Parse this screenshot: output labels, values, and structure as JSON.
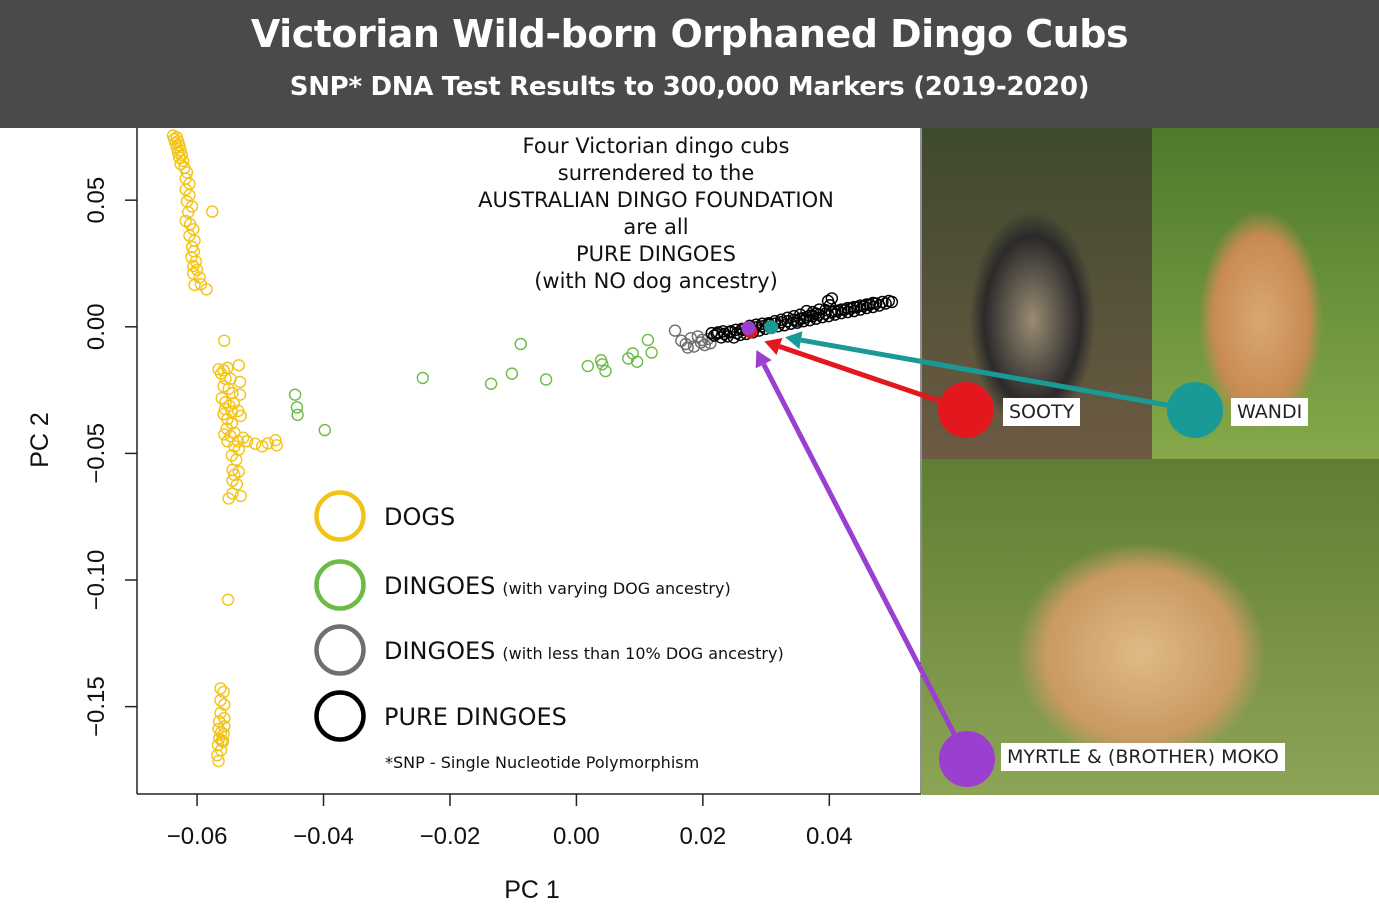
{
  "header": {
    "title": "Victorian Wild-born Orphaned Dingo Cubs",
    "subtitle": "SNP* DNA Test Results to 300,000 Markers (2019-2020)"
  },
  "annotation": [
    "Four Victorian dingo cubs",
    "surrendered to the",
    "AUSTRALIAN DINGO FOUNDATION",
    "are all",
    "PURE DINGOES",
    "(with NO dog ancestry)"
  ],
  "legend": {
    "items": [
      {
        "label": "DOGS",
        "note": "",
        "color": "#f2c418"
      },
      {
        "label": "DINGOES",
        "note": "(with varying DOG ancestry)",
        "color": "#6dbb46"
      },
      {
        "label": "DINGOES",
        "note": "(with less than 10% DOG ancestry)",
        "color": "#6f6f6f"
      },
      {
        "label": "PURE DINGOES",
        "note": "",
        "color": "#000000"
      }
    ],
    "footnote": "*SNP - Single Nucleotide Polymorphism"
  },
  "photos": [
    {
      "name": "SOOTY",
      "marker_color": "#e3171e",
      "palette": [
        "#3e4a2e",
        "#6d5a44",
        "#9a8c74",
        "#2b2a2a"
      ]
    },
    {
      "name": "WANDI",
      "marker_color": "#1a9a96",
      "palette": [
        "#4e7a2c",
        "#86a84a",
        "#d9a872",
        "#c88a52"
      ]
    },
    {
      "name": "MYRTLE & (BROTHER) MOKO",
      "marker_color": "#9a3fd0",
      "palette": [
        "#5f7e34",
        "#8da456",
        "#e0ba86",
        "#c99a62"
      ]
    }
  ],
  "chart_data": {
    "type": "scatter",
    "xlabel": "PC 1",
    "ylabel": "PC 2",
    "xlim": [
      -0.0695,
      0.0545
    ],
    "ylim": [
      -0.1845,
      0.0785
    ],
    "xticks": [
      -0.06,
      -0.04,
      -0.02,
      0.0,
      0.02,
      0.04
    ],
    "xtick_labels": [
      "−0.06",
      "−0.04",
      "−0.02",
      "0.00",
      "0.02",
      "0.04"
    ],
    "yticks": [
      0.05,
      0.0,
      -0.05,
      -0.1,
      -0.15
    ],
    "ytick_labels": [
      "0.05",
      "0.00",
      "−0.05",
      "−0.10",
      "−0.15"
    ],
    "series": [
      {
        "name": "DOGS",
        "color": "#f2c418",
        "points": [
          [
            -0.0638,
            0.0755
          ],
          [
            -0.0632,
            0.0748
          ],
          [
            -0.0636,
            0.0741
          ],
          [
            -0.063,
            0.0733
          ],
          [
            -0.0634,
            0.0725
          ],
          [
            -0.0628,
            0.0716
          ],
          [
            -0.0632,
            0.0707
          ],
          [
            -0.0626,
            0.0697
          ],
          [
            -0.063,
            0.0688
          ],
          [
            -0.0624,
            0.0678
          ],
          [
            -0.0628,
            0.0668
          ],
          [
            -0.0622,
            0.0655
          ],
          [
            -0.0626,
            0.0643
          ],
          [
            -0.062,
            0.0628
          ],
          [
            -0.0616,
            0.061
          ],
          [
            -0.0618,
            0.0585
          ],
          [
            -0.0612,
            0.0565
          ],
          [
            -0.0618,
            0.0542
          ],
          [
            -0.0612,
            0.052
          ],
          [
            -0.0616,
            0.0495
          ],
          [
            -0.0608,
            0.0475
          ],
          [
            -0.0614,
            0.0452
          ],
          [
            -0.0618,
            0.0418
          ],
          [
            -0.0611,
            0.0405
          ],
          [
            -0.0606,
            0.0385
          ],
          [
            -0.0612,
            0.036
          ],
          [
            -0.0604,
            0.034
          ],
          [
            -0.0608,
            0.0315
          ],
          [
            -0.0605,
            0.0298
          ],
          [
            -0.0609,
            0.0275
          ],
          [
            -0.0602,
            0.0258
          ],
          [
            -0.0606,
            0.024
          ],
          [
            -0.06,
            0.0225
          ],
          [
            -0.0606,
            0.021
          ],
          [
            -0.0594,
            0.0168
          ],
          [
            -0.0585,
            0.0148
          ],
          [
            -0.0604,
            0.0165
          ],
          [
            -0.0596,
            0.0195
          ],
          [
            -0.0576,
            0.0455
          ],
          [
            -0.0557,
            -0.0055
          ],
          [
            -0.0566,
            -0.0168
          ],
          [
            -0.0558,
            -0.0172
          ],
          [
            -0.0552,
            -0.0162
          ],
          [
            -0.0562,
            -0.0185
          ],
          [
            -0.0555,
            -0.0205
          ],
          [
            -0.0547,
            -0.0205
          ],
          [
            -0.0534,
            -0.0152
          ],
          [
            -0.0532,
            -0.0218
          ],
          [
            -0.0558,
            -0.0235
          ],
          [
            -0.055,
            -0.0245
          ],
          [
            -0.0544,
            -0.0262
          ],
          [
            -0.0561,
            -0.0282
          ],
          [
            -0.0555,
            -0.0298
          ],
          [
            -0.0549,
            -0.0312
          ],
          [
            -0.0542,
            -0.0302
          ],
          [
            -0.0532,
            -0.0268
          ],
          [
            -0.0556,
            -0.0325
          ],
          [
            -0.0545,
            -0.0335
          ],
          [
            -0.0535,
            -0.0332
          ],
          [
            -0.0531,
            -0.0352
          ],
          [
            -0.0558,
            -0.0345
          ],
          [
            -0.0552,
            -0.0365
          ],
          [
            -0.0545,
            -0.0382
          ],
          [
            -0.0553,
            -0.0402
          ],
          [
            -0.0557,
            -0.0425
          ],
          [
            -0.0547,
            -0.0432
          ],
          [
            -0.0541,
            -0.0418
          ],
          [
            -0.0527,
            -0.0438
          ],
          [
            -0.0535,
            -0.0452
          ],
          [
            -0.0521,
            -0.0452
          ],
          [
            -0.0508,
            -0.0462
          ],
          [
            -0.0497,
            -0.0472
          ],
          [
            -0.0488,
            -0.046
          ],
          [
            -0.0476,
            -0.0448
          ],
          [
            -0.0474,
            -0.0468
          ],
          [
            -0.0552,
            -0.0452
          ],
          [
            -0.0541,
            -0.0472
          ],
          [
            -0.0534,
            -0.0485
          ],
          [
            -0.0545,
            -0.0508
          ],
          [
            -0.0538,
            -0.0525
          ],
          [
            -0.0544,
            -0.0565
          ],
          [
            -0.0534,
            -0.0572
          ],
          [
            -0.0541,
            -0.0585
          ],
          [
            -0.0544,
            -0.0608
          ],
          [
            -0.0537,
            -0.0622
          ],
          [
            -0.0544,
            -0.0658
          ],
          [
            -0.0531,
            -0.0668
          ],
          [
            -0.055,
            -0.0678
          ],
          [
            -0.0551,
            -0.1078
          ],
          [
            -0.0563,
            -0.1428
          ],
          [
            -0.0558,
            -0.1442
          ],
          [
            -0.0563,
            -0.1475
          ],
          [
            -0.0557,
            -0.1492
          ],
          [
            -0.0563,
            -0.1525
          ],
          [
            -0.0557,
            -0.1545
          ],
          [
            -0.0565,
            -0.1558
          ],
          [
            -0.0557,
            -0.1578
          ],
          [
            -0.0566,
            -0.1588
          ],
          [
            -0.0558,
            -0.1608
          ],
          [
            -0.0565,
            -0.1625
          ],
          [
            -0.0559,
            -0.1638
          ],
          [
            -0.0567,
            -0.1652
          ],
          [
            -0.0562,
            -0.1672
          ],
          [
            -0.0568,
            -0.1692
          ],
          [
            -0.0566,
            -0.1715
          ],
          [
            -0.0562,
            -0.1602
          ],
          [
            -0.0561,
            -0.1635
          ]
        ]
      },
      {
        "name": "DINGOES (with varying DOG ancestry)",
        "color": "#6dbb46",
        "points": [
          [
            -0.0445,
            -0.0268
          ],
          [
            -0.0442,
            -0.0318
          ],
          [
            -0.0441,
            -0.0348
          ],
          [
            -0.0398,
            -0.0408
          ],
          [
            -0.0243,
            -0.0202
          ],
          [
            -0.0135,
            -0.0225
          ],
          [
            -0.0102,
            -0.0185
          ],
          [
            -0.0088,
            -0.0068
          ],
          [
            -0.0048,
            -0.0208
          ],
          [
            0.0018,
            -0.0155
          ],
          [
            0.0039,
            -0.0132
          ],
          [
            0.0041,
            -0.0148
          ],
          [
            0.0046,
            -0.0175
          ],
          [
            0.0082,
            -0.0125
          ],
          [
            0.0089,
            -0.0105
          ],
          [
            0.0096,
            -0.0138
          ],
          [
            0.0113,
            -0.0052
          ],
          [
            0.0119,
            -0.0102
          ]
        ]
      },
      {
        "name": "DINGOES (with less than 10% DOG ancestry)",
        "color": "#6f6f6f",
        "points": [
          [
            0.0156,
            -0.0015
          ],
          [
            0.0166,
            -0.0055
          ],
          [
            0.0173,
            -0.0068
          ],
          [
            0.0181,
            -0.0045
          ],
          [
            0.0186,
            -0.0078
          ],
          [
            0.0192,
            -0.0038
          ],
          [
            0.0197,
            -0.0062
          ],
          [
            0.0203,
            -0.0072
          ],
          [
            0.0208,
            -0.0048
          ],
          [
            0.0212,
            -0.0065
          ],
          [
            0.0176,
            -0.0082
          ],
          [
            0.0199,
            -0.0052
          ]
        ]
      },
      {
        "name": "PURE DINGOES",
        "color": "#000000",
        "points": [
          [
            0.0218,
            -0.0035
          ],
          [
            0.0224,
            -0.0022
          ],
          [
            0.0229,
            -0.0042
          ],
          [
            0.0234,
            -0.0028
          ],
          [
            0.0239,
            -0.0038
          ],
          [
            0.0244,
            -0.0018
          ],
          [
            0.0249,
            -0.0042
          ],
          [
            0.0254,
            -0.0025
          ],
          [
            0.0259,
            -0.0032
          ],
          [
            0.0264,
            -0.0012
          ],
          [
            0.0269,
            -0.0028
          ],
          [
            0.0274,
            -0.0008
          ],
          [
            0.0279,
            -0.0022
          ],
          [
            0.0284,
            -0.0002
          ],
          [
            0.0289,
            -0.0015
          ],
          [
            0.0294,
            0.0002
          ],
          [
            0.0299,
            -0.0008
          ],
          [
            0.0304,
            0.0008
          ],
          [
            0.0309,
            -0.0004
          ],
          [
            0.0314,
            0.0012
          ],
          [
            0.0319,
            0.0002
          ],
          [
            0.0324,
            0.0018
          ],
          [
            0.0329,
            0.0006
          ],
          [
            0.0334,
            0.0022
          ],
          [
            0.0339,
            0.0012
          ],
          [
            0.0344,
            0.0028
          ],
          [
            0.0349,
            0.0016
          ],
          [
            0.0354,
            0.0032
          ],
          [
            0.0359,
            0.0022
          ],
          [
            0.0364,
            0.0038
          ],
          [
            0.0369,
            0.0026
          ],
          [
            0.0374,
            0.0042
          ],
          [
            0.0379,
            0.0032
          ],
          [
            0.0384,
            0.0048
          ],
          [
            0.0389,
            0.0038
          ],
          [
            0.0394,
            0.0052
          ],
          [
            0.0399,
            0.0042
          ],
          [
            0.0404,
            0.0058
          ],
          [
            0.0409,
            0.0048
          ],
          [
            0.0414,
            0.0064
          ],
          [
            0.0419,
            0.0054
          ],
          [
            0.0424,
            0.0068
          ],
          [
            0.0429,
            0.0058
          ],
          [
            0.0434,
            0.0072
          ],
          [
            0.0439,
            0.0062
          ],
          [
            0.0444,
            0.0078
          ],
          [
            0.0449,
            0.0068
          ],
          [
            0.0454,
            0.0082
          ],
          [
            0.0459,
            0.0074
          ],
          [
            0.0464,
            0.0088
          ],
          [
            0.0469,
            0.0078
          ],
          [
            0.0474,
            0.0092
          ],
          [
            0.0479,
            0.0084
          ],
          [
            0.0484,
            0.0098
          ],
          [
            0.0489,
            0.0092
          ],
          [
            0.0494,
            0.0102
          ],
          [
            0.0499,
            0.0098
          ],
          [
            0.0398,
            0.0102
          ],
          [
            0.0401,
            0.0085
          ],
          [
            0.0404,
            0.0112
          ],
          [
            0.0384,
            0.0068
          ],
          [
            0.0374,
            0.0058
          ],
          [
            0.0364,
            0.0062
          ],
          [
            0.0354,
            0.0048
          ],
          [
            0.0344,
            0.0042
          ],
          [
            0.0334,
            0.0036
          ],
          [
            0.0324,
            0.0028
          ],
          [
            0.0314,
            0.0022
          ],
          [
            0.0304,
            0.0014
          ],
          [
            0.0294,
            0.0012
          ],
          [
            0.0284,
            0.0008
          ],
          [
            0.0274,
            0.0004
          ],
          [
            0.0262,
            -0.0008
          ],
          [
            0.0252,
            -0.0012
          ],
          [
            0.0242,
            -0.0022
          ],
          [
            0.0232,
            -0.0018
          ],
          [
            0.0222,
            -0.0028
          ],
          [
            0.0214,
            -0.0025
          ],
          [
            0.0419,
            0.0068
          ],
          [
            0.0429,
            0.0074
          ],
          [
            0.0439,
            0.0078
          ],
          [
            0.0449,
            0.0084
          ],
          [
            0.0459,
            0.0088
          ],
          [
            0.0469,
            0.0094
          ],
          [
            0.0409,
            0.0062
          ],
          [
            0.0394,
            0.0066
          ],
          [
            0.0379,
            0.0052
          ],
          [
            0.0369,
            0.0044
          ],
          [
            0.0359,
            0.0034
          ],
          [
            0.0349,
            0.0024
          ]
        ]
      }
    ],
    "highlights": [
      {
        "name": "SOOTY",
        "x": 0.0275,
        "y": -0.0018,
        "color": "#e3171e"
      },
      {
        "name": "WANDI",
        "x": 0.0308,
        "y": -0.0002,
        "color": "#1a9a96"
      },
      {
        "name": "MYRTLE & (BROTHER) MOKO",
        "x": 0.0272,
        "y": -0.0005,
        "color": "#9a3fd0"
      }
    ]
  }
}
